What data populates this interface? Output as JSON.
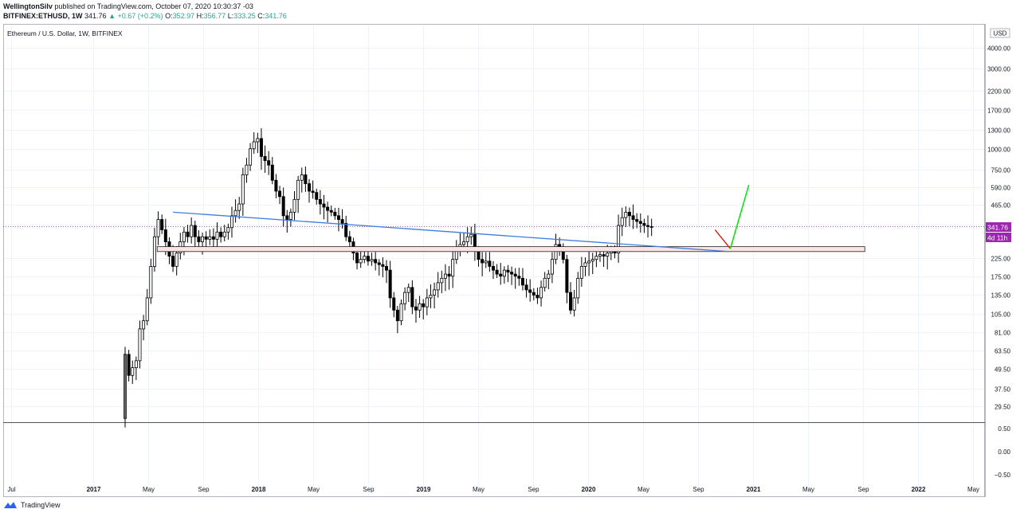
{
  "header": {
    "author": "WellingtonSilv",
    "published": "published on TradingView.com, October 07, 2020 10:30:37 -03",
    "symbol": "BITFINEX:ETHUSD, 1W",
    "last": "341.76",
    "change": "+0.67 (+0.2%)",
    "o_label": "O:",
    "o": "352.97",
    "h_label": "H:",
    "h": "356.77",
    "l_label": "L:",
    "l": "333.25",
    "c_label": "C:",
    "c": "341.76"
  },
  "pane_title": "Ethereum / U.S. Dollar, 1W, BITFINEX",
  "currency": "USD",
  "price_badge": "341.76",
  "countdown_badge": "4d 11h",
  "colors": {
    "badge": "#9c27b0",
    "trend": "#3d7dde",
    "zone_fill": "#fce4e4",
    "zone_stroke": "#222222",
    "down_arrow": "#ff0000",
    "up_arrow": "#00e600"
  },
  "footer": {
    "brand": "TradingView"
  },
  "chart_data": {
    "type": "candlestick",
    "scale": "log",
    "price_axis_ticks": [
      "5790.00",
      "4000.00",
      "3000.00",
      "2200.00",
      "1700.00",
      "1300.00",
      "1000.00",
      "750.00",
      "590.00",
      "465.00",
      "355.00",
      "225.00",
      "175.00",
      "135.00",
      "105.00",
      "81.00",
      "63.50",
      "49.50",
      "37.50",
      "29.50"
    ],
    "indicator_axis_ticks": [
      "0.50",
      "0.00",
      "−0.50"
    ],
    "time_axis": [
      "Jul",
      "2017",
      "May",
      "Sep",
      "2018",
      "May",
      "Sep",
      "2019",
      "May",
      "Sep",
      "2020",
      "May",
      "Sep",
      "2021",
      "May",
      "Sep",
      "2022",
      "May"
    ],
    "ylim": [
      25,
      5800
    ],
    "close_path": [
      [
        0,
        25
      ],
      [
        1,
        60
      ],
      [
        2,
        45
      ],
      [
        3,
        50
      ],
      [
        4,
        55
      ],
      [
        5,
        85
      ],
      [
        6,
        95
      ],
      [
        7,
        130
      ],
      [
        8,
        200
      ],
      [
        9,
        300
      ],
      [
        10,
        380
      ],
      [
        11,
        330
      ],
      [
        12,
        280
      ],
      [
        13,
        230
      ],
      [
        14,
        200
      ],
      [
        15,
        240
      ],
      [
        16,
        280
      ],
      [
        17,
        320
      ],
      [
        18,
        300
      ],
      [
        19,
        350
      ],
      [
        20,
        300
      ],
      [
        21,
        280
      ],
      [
        22,
        300
      ],
      [
        23,
        290
      ],
      [
        24,
        300
      ],
      [
        25,
        290
      ],
      [
        26,
        320
      ],
      [
        27,
        300
      ],
      [
        28,
        320
      ],
      [
        29,
        340
      ],
      [
        30,
        400
      ],
      [
        31,
        430
      ],
      [
        32,
        470
      ],
      [
        33,
        700
      ],
      [
        34,
        800
      ],
      [
        35,
        1000
      ],
      [
        36,
        1100
      ],
      [
        37,
        1150
      ],
      [
        38,
        900
      ],
      [
        39,
        850
      ],
      [
        40,
        800
      ],
      [
        41,
        650
      ],
      [
        42,
        560
      ],
      [
        43,
        520
      ],
      [
        44,
        400
      ],
      [
        45,
        380
      ],
      [
        46,
        420
      ],
      [
        47,
        500
      ],
      [
        48,
        650
      ],
      [
        49,
        700
      ],
      [
        50,
        620
      ],
      [
        51,
        560
      ],
      [
        52,
        550
      ],
      [
        53,
        500
      ],
      [
        54,
        470
      ],
      [
        55,
        450
      ],
      [
        56,
        430
      ],
      [
        57,
        420
      ],
      [
        58,
        400
      ],
      [
        59,
        380
      ],
      [
        60,
        360
      ],
      [
        61,
        300
      ],
      [
        62,
        280
      ],
      [
        63,
        240
      ],
      [
        64,
        210
      ],
      [
        65,
        220
      ],
      [
        66,
        230
      ],
      [
        67,
        215
      ],
      [
        68,
        220
      ],
      [
        69,
        210
      ],
      [
        70,
        205
      ],
      [
        71,
        200
      ],
      [
        72,
        190
      ],
      [
        73,
        130
      ],
      [
        74,
        110
      ],
      [
        75,
        95
      ],
      [
        76,
        120
      ],
      [
        77,
        140
      ],
      [
        78,
        150
      ],
      [
        79,
        115
      ],
      [
        80,
        110
      ],
      [
        81,
        120
      ],
      [
        82,
        115
      ],
      [
        83,
        130
      ],
      [
        84,
        135
      ],
      [
        85,
        145
      ],
      [
        86,
        160
      ],
      [
        87,
        170
      ],
      [
        88,
        180
      ],
      [
        89,
        175
      ],
      [
        90,
        220
      ],
      [
        91,
        260
      ],
      [
        92,
        270
      ],
      [
        93,
        280
      ],
      [
        94,
        300
      ],
      [
        95,
        310
      ],
      [
        96,
        250
      ],
      [
        97,
        220
      ],
      [
        98,
        210
      ],
      [
        99,
        215
      ],
      [
        100,
        200
      ],
      [
        101,
        190
      ],
      [
        102,
        180
      ],
      [
        103,
        175
      ],
      [
        104,
        190
      ],
      [
        105,
        185
      ],
      [
        106,
        180
      ],
      [
        107,
        175
      ],
      [
        108,
        170
      ],
      [
        109,
        155
      ],
      [
        110,
        145
      ],
      [
        111,
        140
      ],
      [
        112,
        135
      ],
      [
        113,
        130
      ],
      [
        114,
        150
      ],
      [
        115,
        170
      ],
      [
        116,
        180
      ],
      [
        117,
        220
      ],
      [
        118,
        270
      ],
      [
        119,
        250
      ],
      [
        120,
        220
      ],
      [
        121,
        140
      ],
      [
        122,
        110
      ],
      [
        123,
        130
      ],
      [
        124,
        170
      ],
      [
        125,
        200
      ],
      [
        126,
        210
      ],
      [
        127,
        215
      ],
      [
        128,
        220
      ],
      [
        129,
        230
      ],
      [
        130,
        235
      ],
      [
        131,
        230
      ],
      [
        132,
        240
      ],
      [
        133,
        245
      ],
      [
        134,
        240
      ],
      [
        135,
        350
      ],
      [
        136,
        390
      ],
      [
        137,
        420
      ],
      [
        138,
        400
      ],
      [
        139,
        380
      ],
      [
        140,
        370
      ],
      [
        141,
        360
      ],
      [
        142,
        350
      ],
      [
        143,
        345
      ],
      [
        144,
        341.76
      ]
    ],
    "drawings": {
      "trendline": {
        "from": [
          "2017-06",
          420
        ],
        "to": [
          "2020-11",
          245
        ]
      },
      "support_zone": {
        "from": "2017-06",
        "to": "2021-06",
        "low": 245,
        "high": 262
      },
      "projection_down": {
        "from": [
          "2020-10",
          330
        ],
        "to": [
          "2020-11",
          255
        ]
      },
      "projection_up": {
        "from": [
          "2020-11",
          255
        ],
        "to": [
          "2020-12",
          610
        ]
      }
    }
  }
}
